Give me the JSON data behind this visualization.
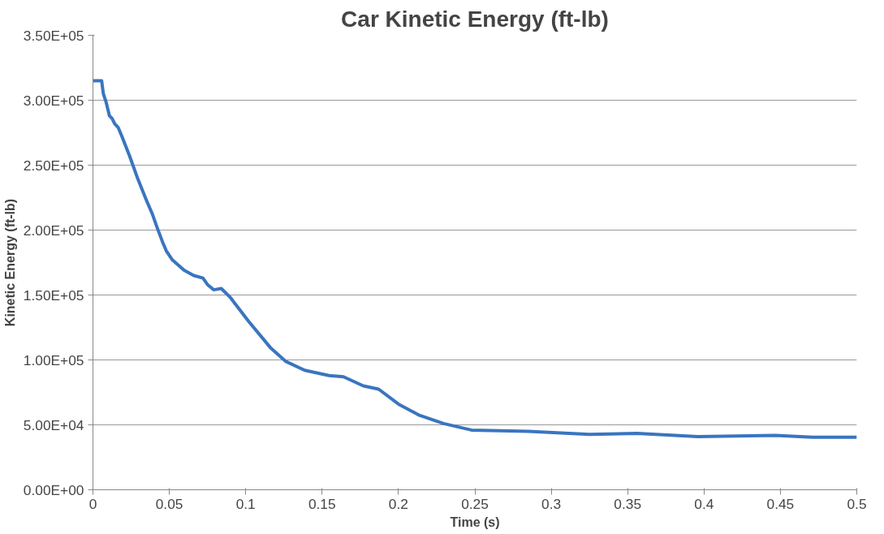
{
  "chart_data": {
    "type": "line",
    "title": "Car Kinetic Energy (ft-lb)",
    "xlabel": "Time (s)",
    "ylabel": "Kinetic Energy (ft-lb)",
    "x": [
      0,
      0.0057,
      0.0068,
      0.0085,
      0.0108,
      0.0125,
      0.0142,
      0.0165,
      0.019,
      0.024,
      0.0295,
      0.035,
      0.039,
      0.042,
      0.0455,
      0.048,
      0.052,
      0.0597,
      0.066,
      0.072,
      0.075,
      0.079,
      0.084,
      0.09,
      0.1017,
      0.1165,
      0.126,
      0.1386,
      0.1545,
      0.164,
      0.177,
      0.187,
      0.2,
      0.2136,
      0.2295,
      0.2477,
      0.285,
      0.325,
      0.356,
      0.396,
      0.4466,
      0.471,
      0.5
    ],
    "series": [
      {
        "color": "#3a75bf",
        "values": [
          315000,
          315000,
          305000,
          299000,
          288000,
          286000,
          282000,
          279000,
          272000,
          257000,
          239000,
          223000,
          212000,
          202000,
          191000,
          184000,
          177000,
          169000,
          165000,
          163000,
          158000,
          154000,
          155000,
          148000,
          130000,
          109000,
          99000,
          92000,
          88000,
          87000,
          80000,
          77500,
          66000,
          57400,
          51000,
          46000,
          45000,
          42700,
          43400,
          41000,
          41900,
          40400,
          40400
        ]
      }
    ],
    "xlim": [
      0,
      0.5
    ],
    "xticks": [
      0,
      0.05,
      0.1,
      0.15,
      0.2,
      0.25,
      0.3,
      0.35,
      0.4,
      0.45,
      0.5
    ],
    "ylim": [
      0,
      350000
    ],
    "yticks": [
      {
        "value": 0,
        "label": "0.00E+00"
      },
      {
        "value": 50000,
        "label": "5.00E+04"
      },
      {
        "value": 100000,
        "label": "1.00E+05"
      },
      {
        "value": 150000,
        "label": "1.50E+05"
      },
      {
        "value": 200000,
        "label": "2.00E+05"
      },
      {
        "value": 250000,
        "label": "2.50E+05"
      },
      {
        "value": 300000,
        "label": "3.00E+05"
      },
      {
        "value": 350000,
        "label": "3.50E+05"
      }
    ],
    "grid": "y",
    "marker": "none",
    "line_style": "solid"
  }
}
